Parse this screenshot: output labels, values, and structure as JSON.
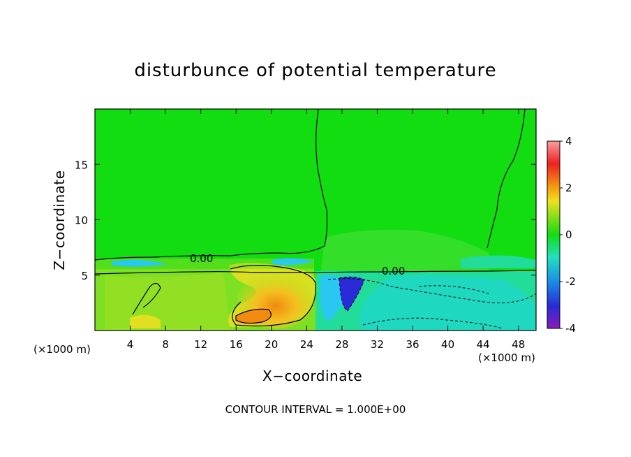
{
  "chart_data": {
    "type": "heatmap",
    "title": "disturbunce of potential temperature",
    "xlabel": "X−coordinate",
    "ylabel": "Z−coordinate",
    "x_unit_left": "(×1000 m)",
    "x_unit_right": "(×1000 m)",
    "xlim": [
      0,
      50
    ],
    "ylim": [
      0,
      20
    ],
    "x_ticks": [
      4,
      8,
      12,
      16,
      20,
      24,
      28,
      32,
      36,
      40,
      44,
      48
    ],
    "y_ticks": [
      5,
      10,
      15
    ],
    "colorbar": {
      "range": [
        -4,
        4
      ],
      "ticks": [
        4,
        2,
        0,
        -2,
        -4
      ]
    },
    "contour_labels": [
      "0.00",
      "0.00"
    ],
    "contour_interval_text": "CONTOUR INTERVAL = 1.000E+00",
    "features": [
      {
        "kind": "warm anomaly",
        "x_range": [
          16,
          24
        ],
        "z_range": [
          0,
          5
        ],
        "max_value": 1.5
      },
      {
        "kind": "cold anomaly",
        "x_range": [
          27,
          30
        ],
        "z_range": [
          2,
          5
        ],
        "min_value": -3
      },
      {
        "kind": "cool region",
        "x_range": [
          25,
          50
        ],
        "z_range": [
          0,
          5.5
        ],
        "value": -1
      }
    ],
    "colors": {
      "neutral": "#11dd11",
      "warm": "#f08a10",
      "cold": "#2a2ad8",
      "cool": "#22dd99"
    }
  }
}
